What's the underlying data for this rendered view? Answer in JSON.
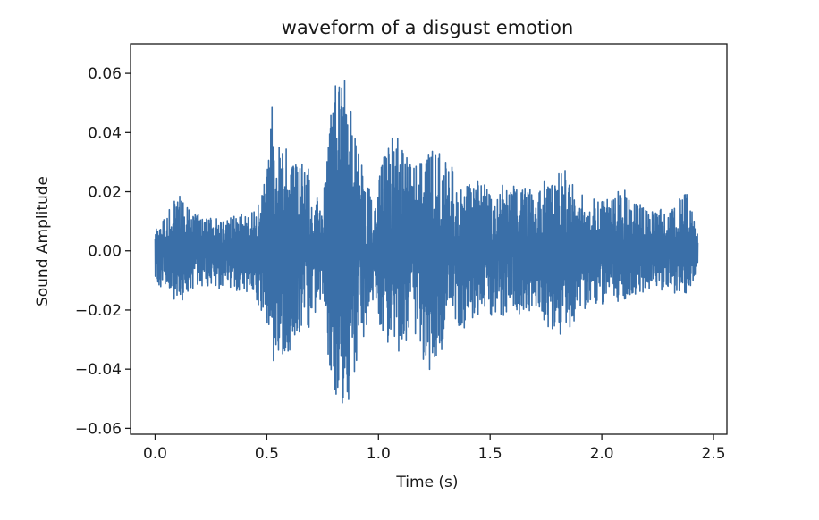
{
  "chart_data": {
    "type": "line",
    "title": "waveform of a disgust emotion",
    "xlabel": "Time (s)",
    "ylabel": "Sound Amplitude",
    "xlim": [
      -0.11,
      2.56
    ],
    "ylim": [
      -0.062,
      0.07
    ],
    "xticks": [
      0.0,
      0.5,
      1.0,
      1.5,
      2.0,
      2.5
    ],
    "xtick_labels": [
      "0.0",
      "0.5",
      "1.0",
      "1.5",
      "2.0",
      "2.5"
    ],
    "yticks": [
      -0.06,
      -0.04,
      -0.02,
      0.0,
      0.02,
      0.04,
      0.06
    ],
    "ytick_labels": [
      "−0.06",
      "−0.04",
      "−0.02",
      "0.00",
      "0.02",
      "0.04",
      "0.06"
    ],
    "grid": false,
    "series": [
      {
        "color": "#3a6fa8",
        "duration_s": 2.43,
        "envelope": {
          "t": [
            0.0,
            0.05,
            0.1,
            0.2,
            0.3,
            0.4,
            0.45,
            0.5,
            0.52,
            0.55,
            0.6,
            0.7,
            0.75,
            0.79,
            0.82,
            0.85,
            0.87,
            0.9,
            0.95,
            0.98,
            1.02,
            1.08,
            1.15,
            1.25,
            1.3,
            1.35,
            1.4,
            1.5,
            1.6,
            1.7,
            1.8,
            1.83,
            1.9,
            2.0,
            2.1,
            2.2,
            2.3,
            2.38,
            2.43
          ],
          "max": [
            0.008,
            0.012,
            0.02,
            0.012,
            0.011,
            0.013,
            0.014,
            0.028,
            0.053,
            0.035,
            0.035,
            0.027,
            0.015,
            0.052,
            0.062,
            0.06,
            0.064,
            0.04,
            0.025,
            0.012,
            0.035,
            0.04,
            0.032,
            0.038,
            0.03,
            0.033,
            0.025,
            0.023,
            0.022,
            0.021,
            0.027,
            0.028,
            0.02,
            0.019,
            0.021,
            0.015,
            0.014,
            0.02,
            0.006
          ],
          "min": [
            -0.012,
            -0.013,
            -0.018,
            -0.012,
            -0.013,
            -0.014,
            -0.015,
            -0.03,
            -0.043,
            -0.035,
            -0.035,
            -0.025,
            -0.015,
            -0.05,
            -0.054,
            -0.056,
            -0.05,
            -0.04,
            -0.025,
            -0.015,
            -0.032,
            -0.035,
            -0.033,
            -0.042,
            -0.03,
            -0.03,
            -0.025,
            -0.022,
            -0.022,
            -0.02,
            -0.03,
            -0.031,
            -0.02,
            -0.018,
            -0.017,
            -0.014,
            -0.014,
            -0.016,
            -0.006
          ]
        }
      }
    ]
  }
}
